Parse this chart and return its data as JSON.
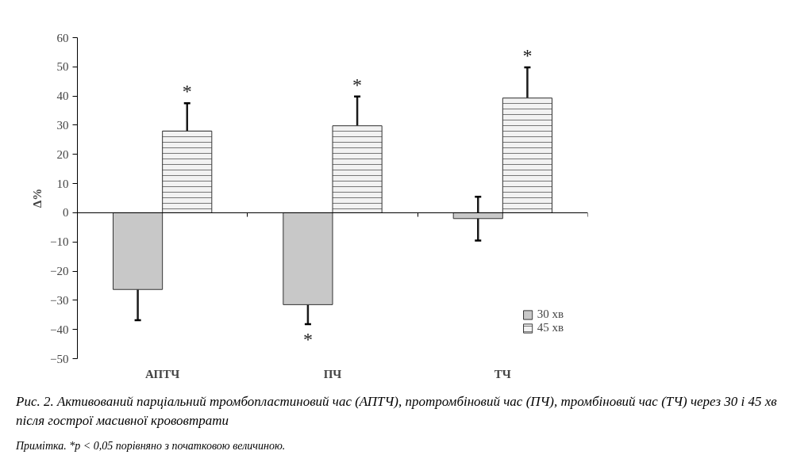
{
  "chart_data": {
    "type": "bar",
    "ylabel": "Δ%",
    "categories": [
      "АПТЧ",
      "ПЧ",
      "ТЧ"
    ],
    "series": [
      {
        "name": "30 хв",
        "color": "#c8c8c8",
        "values": [
          -26.3,
          -31.5,
          -2
        ],
        "errors": [
          10.5,
          6.7,
          7.5
        ],
        "value_labels": [
          null,
          "*",
          null
        ]
      },
      {
        "name": "45 хв",
        "color": "#f2f2f2",
        "values": [
          28,
          29.8,
          39.3
        ],
        "errors": [
          9.5,
          10,
          10.5
        ],
        "value_labels": [
          "*",
          "*",
          "*"
        ]
      }
    ],
    "ylim": [
      -50,
      60
    ],
    "yticks": [
      -50,
      -40,
      -30,
      -20,
      -10,
      0,
      10,
      20,
      30,
      40,
      50,
      60
    ],
    "legend": "bottom right",
    "annotations": [
      "Рис. 2. Активований парціальний тромбопластиновий час (АПТЧ), протромбіновий час (ПЧ), тромбіновий час (ТЧ) через 30 і 45 хв після гострої масивної крововтрати",
      "Примітка. *р < 0,05 порівняно з початковою величиною."
    ]
  }
}
